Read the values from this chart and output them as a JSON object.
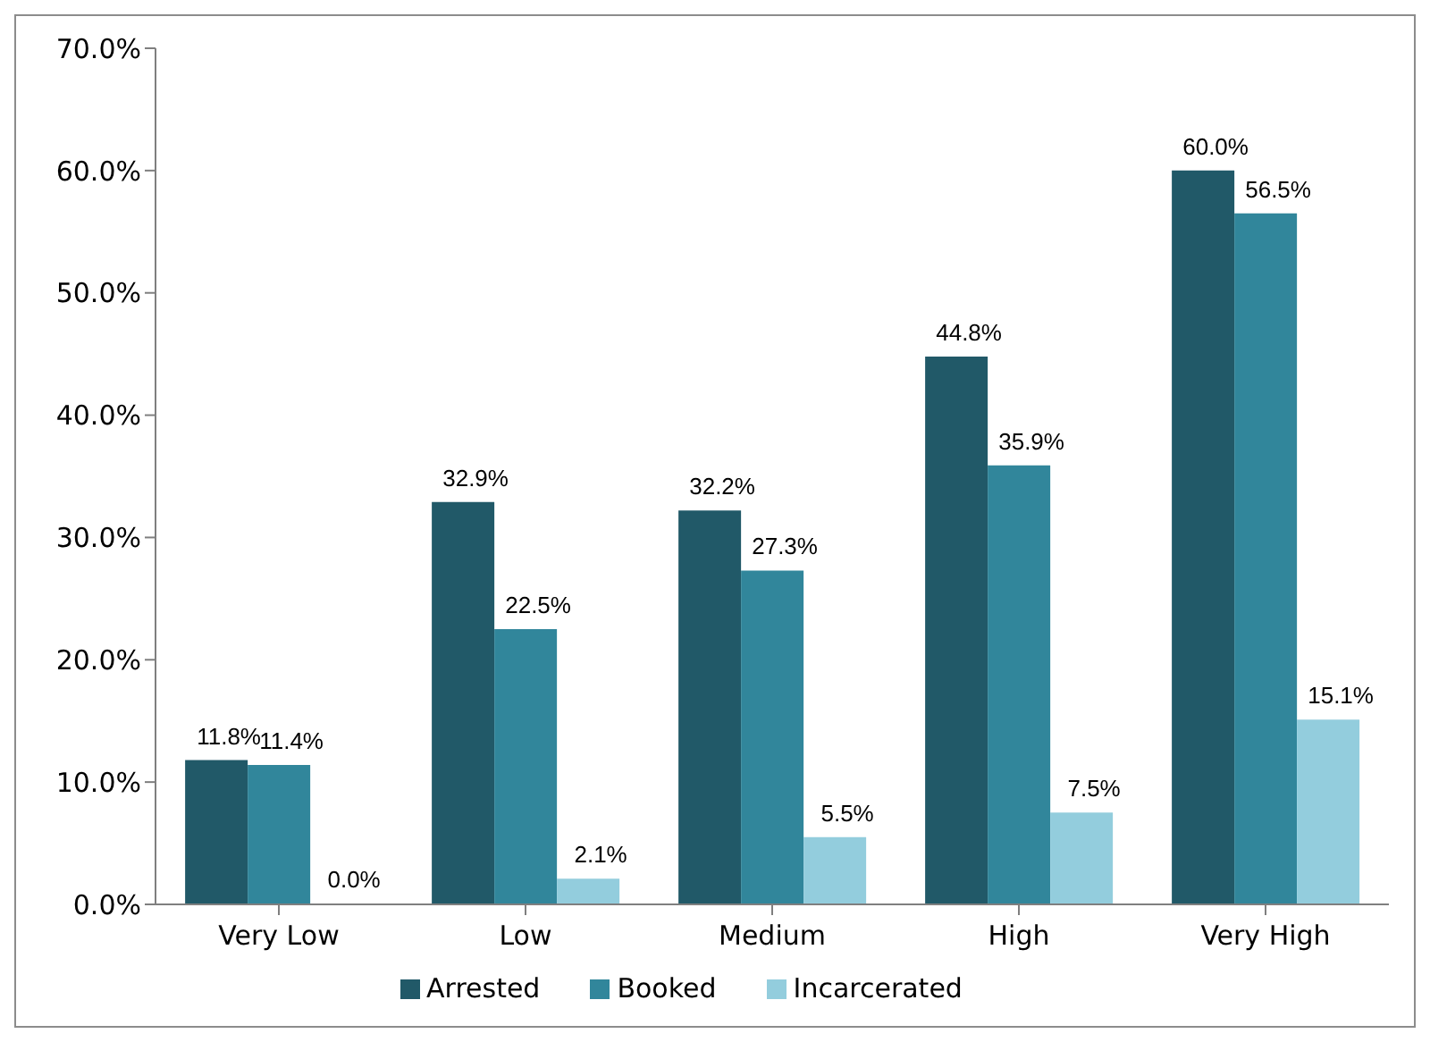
{
  "chart_data": {
    "type": "bar",
    "categories": [
      "Very Low",
      "Low",
      "Medium",
      "High",
      "Very High"
    ],
    "series": [
      {
        "name": "Arrested",
        "color": "#215968",
        "values": [
          11.8,
          32.9,
          32.2,
          44.8,
          60.0
        ],
        "value_labels": [
          "11.8%",
          "32.9%",
          "32.2%",
          "44.8%",
          "60.0%"
        ]
      },
      {
        "name": "Booked",
        "color": "#31869b",
        "values": [
          11.4,
          22.5,
          27.3,
          35.9,
          56.5
        ],
        "value_labels": [
          "11.4%",
          "22.5%",
          "27.3%",
          "35.9%",
          "56.5%"
        ]
      },
      {
        "name": "Incarcerated",
        "color": "#93cddd",
        "values": [
          0.0,
          2.1,
          5.5,
          7.5,
          15.1
        ],
        "value_labels": [
          "0.0%",
          "2.1%",
          "5.5%",
          "7.5%",
          "15.1%"
        ]
      }
    ],
    "ylim": [
      0,
      70
    ],
    "yticks": [
      {
        "value": 0,
        "label": "0.0%"
      },
      {
        "value": 10,
        "label": "10.0%"
      },
      {
        "value": 20,
        "label": "20.0%"
      },
      {
        "value": 30,
        "label": "30.0%"
      },
      {
        "value": 40,
        "label": "40.0%"
      },
      {
        "value": 50,
        "label": "50.0%"
      },
      {
        "value": 60,
        "label": "60.0%"
      },
      {
        "value": 70,
        "label": "70.0%"
      }
    ],
    "grid": false,
    "legend": "bottom"
  }
}
